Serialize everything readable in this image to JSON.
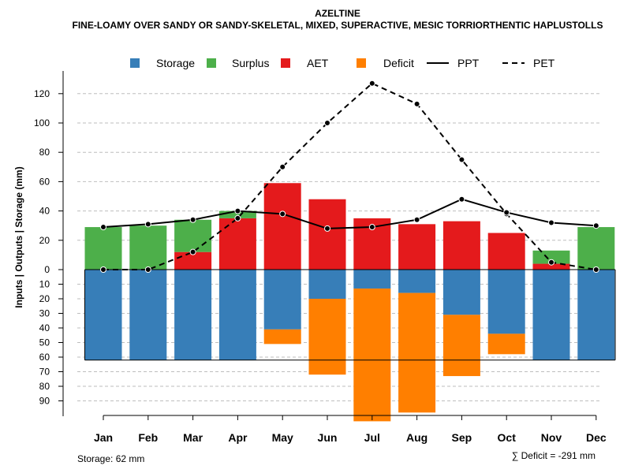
{
  "chart_data": {
    "type": "bar",
    "title": "AZELTINE",
    "subtitle": "FINE-LOAMY OVER SANDY OR SANDY-SKELETAL, MIXED, SUPERACTIVE, MESIC TORRIORTHENTIC HAPLUSTOLLS",
    "ylabel": "Inputs | Outputs | Storage     (mm)",
    "xlabel": "",
    "categories": [
      "Jan",
      "Feb",
      "Mar",
      "Apr",
      "May",
      "Jun",
      "Jul",
      "Aug",
      "Sep",
      "Oct",
      "Nov",
      "Dec"
    ],
    "upper_ticks": [
      "0",
      "20",
      "40",
      "60",
      "80",
      "100",
      "120"
    ],
    "lower_ticks": [
      "10",
      "20",
      "30",
      "40",
      "50",
      "60",
      "70",
      "80",
      "90"
    ],
    "ylim_upper": [
      0,
      128
    ],
    "ylim_lower": [
      0,
      98
    ],
    "grid": true,
    "legend_position": "top",
    "colors": {
      "storage": "#377EB8",
      "surplus": "#4DAF4A",
      "aet": "#E41A1C",
      "deficit": "#FF7F00",
      "line": "#000000",
      "grid": "#BEBEBE"
    },
    "legend": [
      {
        "key": "storage",
        "label": "Storage",
        "style": "box"
      },
      {
        "key": "surplus",
        "label": "Surplus",
        "style": "box"
      },
      {
        "key": "aet",
        "label": "AET",
        "style": "box"
      },
      {
        "key": "deficit",
        "label": "Deficit",
        "style": "box"
      },
      {
        "key": "ppt",
        "label": "PPT",
        "style": "solid"
      },
      {
        "key": "pet",
        "label": "PET",
        "style": "dashed"
      }
    ],
    "series": [
      {
        "name": "AET",
        "values": [
          0,
          0,
          12,
          35,
          59,
          48,
          35,
          31,
          33,
          25,
          4,
          0
        ]
      },
      {
        "name": "Surplus",
        "values": [
          29,
          30,
          22,
          5,
          0,
          0,
          0,
          0,
          0,
          0,
          9,
          29
        ]
      },
      {
        "name": "Storage",
        "values": [
          62,
          62,
          62,
          62,
          41,
          20,
          13,
          16,
          31,
          44,
          62,
          62
        ]
      },
      {
        "name": "Deficit",
        "values": [
          0,
          0,
          0,
          0,
          10,
          52,
          91,
          82,
          42,
          14,
          0,
          0
        ]
      },
      {
        "name": "PPT",
        "values": [
          29,
          31,
          34,
          40,
          38,
          28,
          29,
          34,
          48,
          39,
          32,
          30
        ]
      },
      {
        "name": "PET",
        "values": [
          0,
          0,
          12,
          35,
          70,
          100,
          127,
          113,
          75,
          38,
          5,
          0
        ]
      }
    ],
    "storage_capacity": 62,
    "annotations": {
      "storage_note": "Storage: 62 mm",
      "deficit_note": "∑ Deficit = -291 mm"
    }
  }
}
